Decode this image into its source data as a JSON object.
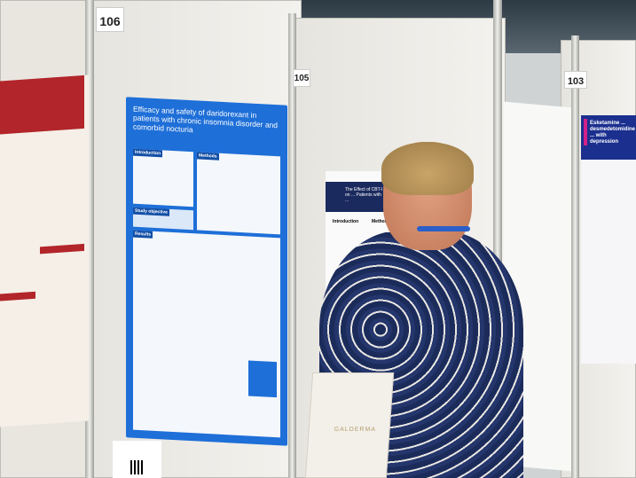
{
  "scene": {
    "description_free": true
  },
  "booths": [
    {
      "number": "106"
    },
    {
      "number": "105"
    },
    {
      "number": "103"
    }
  ],
  "main_poster": {
    "title": "Efficacy and safety of daridorexant in patients with chronic insomnia disorder and comorbid nocturia",
    "sections": [
      "Introduction",
      "Methods",
      "Study objective",
      "Results"
    ],
    "accent": "#1e6fd8"
  },
  "second_poster": {
    "title": "The Effect of CBT-I on ... Patients with ...",
    "sections": [
      "Introduction",
      "Methods"
    ]
  },
  "right_poster": {
    "title": "Esketamine ... desmedetomidine ... with depression"
  },
  "bag": {
    "brand": "GALDERMA"
  }
}
